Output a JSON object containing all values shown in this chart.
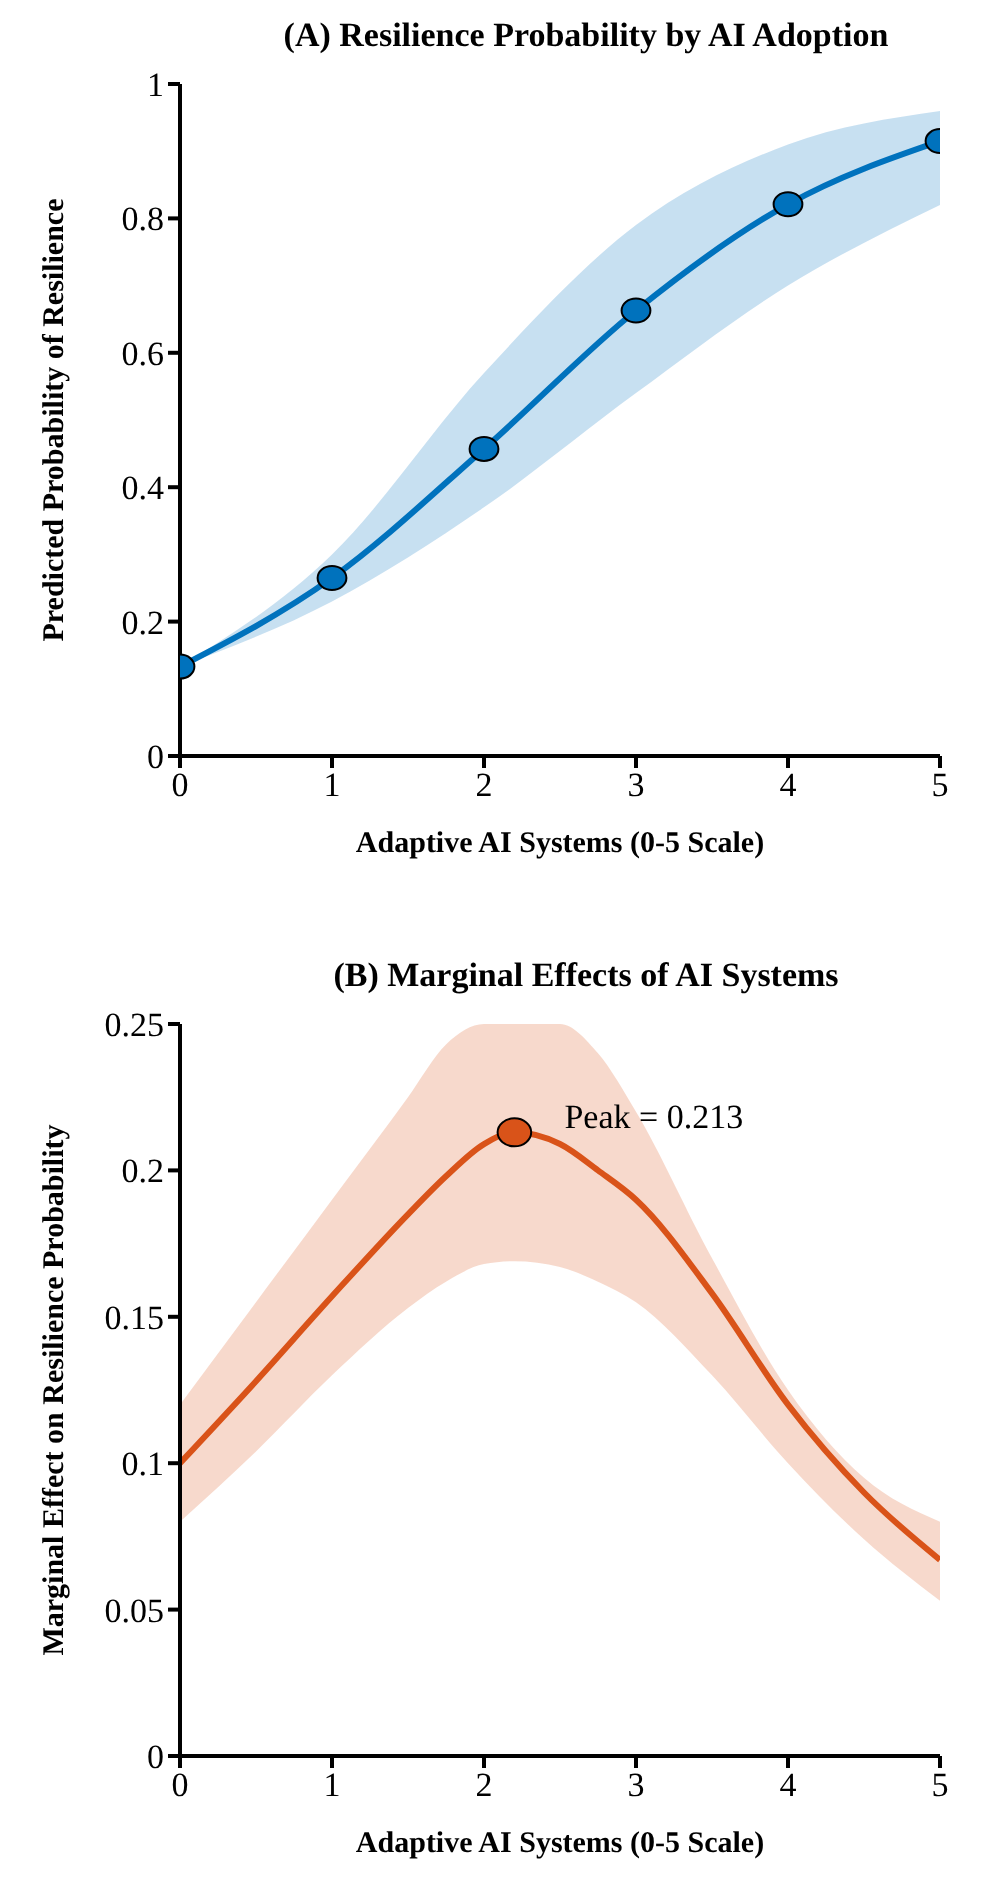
{
  "chart_data": [
    {
      "type": "line",
      "title": "(A) Resilience Probability by AI Adoption",
      "xlabel": "Adaptive AI Systems (0-5 Scale)",
      "ylabel": "Predicted Probability of Resilience",
      "xlim": [
        0,
        5
      ],
      "xticks": [
        0,
        1,
        2,
        3,
        4,
        5
      ],
      "ylim": [
        0,
        1
      ],
      "yticks": [
        0,
        0.2,
        0.4,
        0.6,
        0.8,
        1
      ],
      "marker": "circle",
      "series": [
        {
          "color": "#0072bd",
          "x": [
            0,
            1,
            2,
            3,
            4,
            5
          ],
          "values": [
            0.133,
            0.265,
            0.457,
            0.663,
            0.821,
            0.915
          ],
          "lower": [
            0.133,
            0.23,
            0.37,
            0.54,
            0.7,
            0.82
          ],
          "upper": [
            0.133,
            0.3,
            0.57,
            0.79,
            0.91,
            0.96
          ]
        }
      ]
    },
    {
      "type": "line",
      "title": "(B) Marginal Effects of AI Systems",
      "xlabel": "Adaptive AI Systems (0-5 Scale)",
      "ylabel": "Marginal Effect on Resilience Probability",
      "xlim": [
        0,
        5
      ],
      "xticks": [
        0,
        1,
        2,
        3,
        4,
        5
      ],
      "ylim": [
        0,
        0.25
      ],
      "yticks": [
        0,
        0.05,
        0.1,
        0.15,
        0.2,
        0.25
      ],
      "marker": "none",
      "series": [
        {
          "color": "#d95319",
          "x": [
            0,
            0.5,
            1,
            1.5,
            1.75,
            2,
            2.2,
            2.5,
            2.75,
            3,
            3.5,
            4,
            4.5,
            5
          ],
          "values": [
            0.1,
            0.128,
            0.157,
            0.185,
            0.198,
            0.209,
            0.213,
            0.209,
            0.2,
            0.19,
            0.158,
            0.12,
            0.09,
            0.067
          ],
          "lower": [
            0.08,
            0.104,
            0.13,
            0.153,
            0.162,
            0.168,
            0.169,
            0.167,
            0.162,
            0.155,
            0.13,
            0.1,
            0.074,
            0.053
          ],
          "upper": [
            0.12,
            0.155,
            0.19,
            0.225,
            0.243,
            0.25,
            0.25,
            0.25,
            0.24,
            0.22,
            0.17,
            0.125,
            0.095,
            0.08
          ]
        },
        {
          "type": "scatter",
          "color": "#d95319",
          "x": [
            2.2
          ],
          "values": [
            0.213
          ],
          "marker": "circle"
        }
      ],
      "annotations": [
        {
          "text": "Peak = 0.213",
          "x": 2.2,
          "y": 0.213
        }
      ]
    }
  ]
}
